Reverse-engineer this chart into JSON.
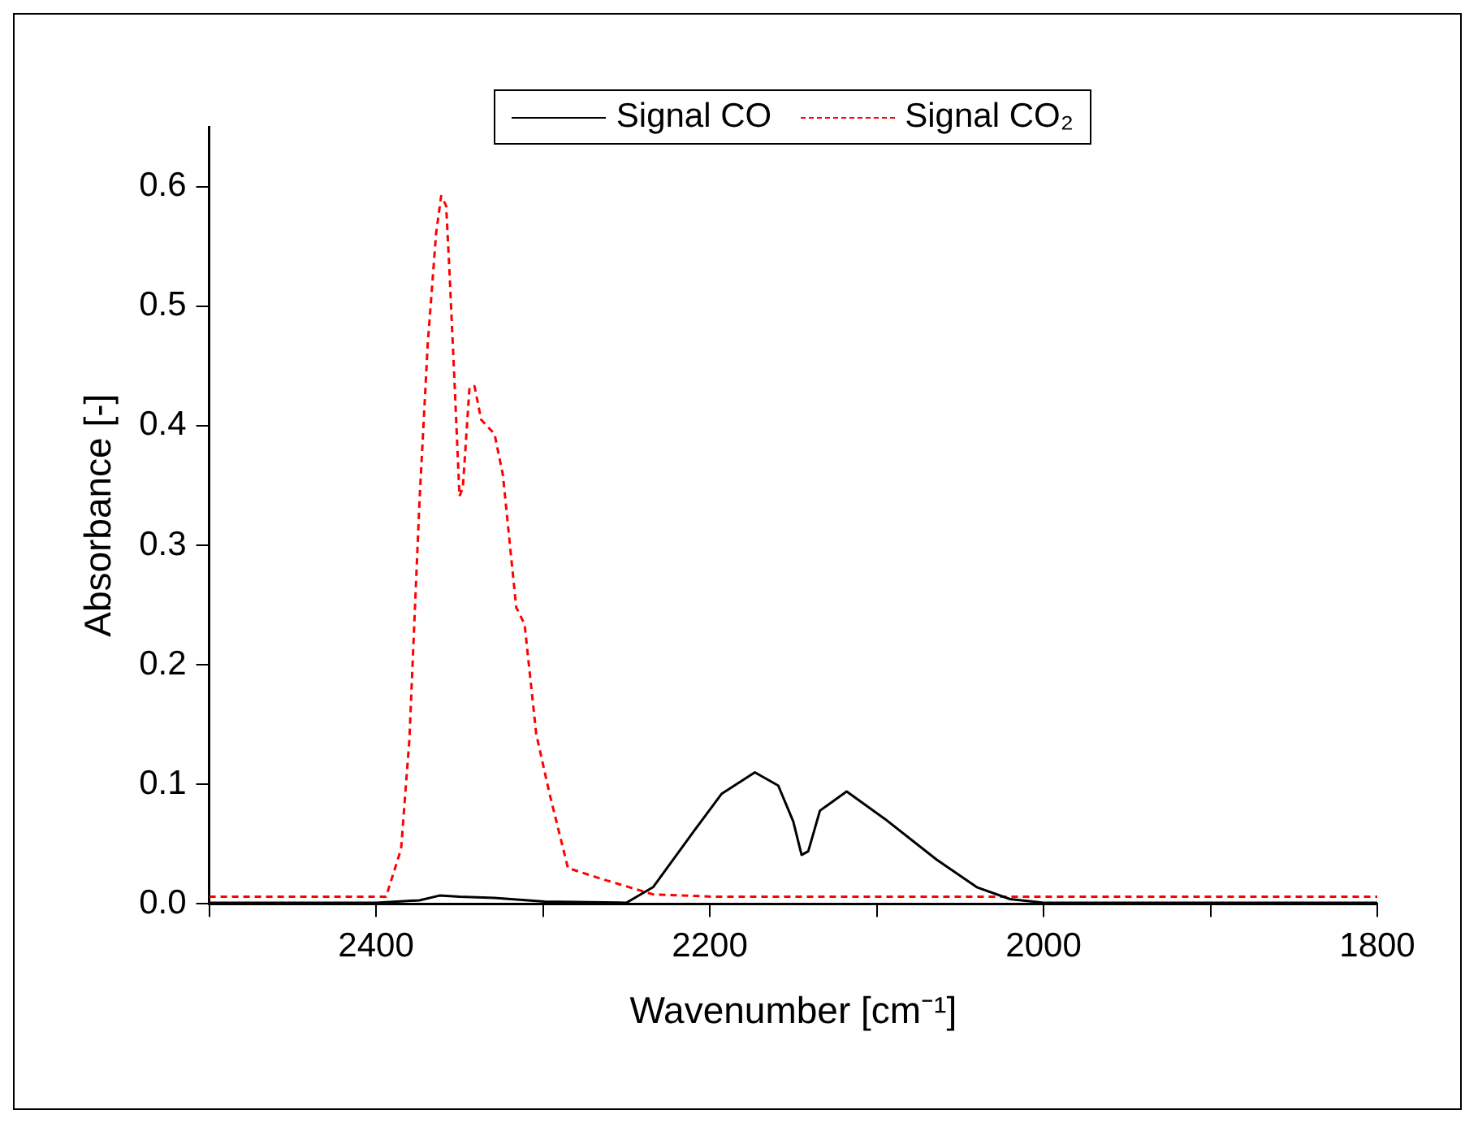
{
  "chart_data": {
    "type": "line",
    "xlabel": "Wavenumber [cm⁻¹]",
    "ylabel": "Absorbance [-]",
    "xlim": [
      2500,
      1800
    ],
    "xticks": [
      {
        "value": 2500,
        "label": null
      },
      2400,
      {
        "value": 2300,
        "label": null
      },
      2200,
      {
        "value": 2100,
        "label": null
      },
      2000,
      {
        "value": 1900,
        "label": null
      },
      1800
    ],
    "ylim": [
      0,
      0.65
    ],
    "yticks": [
      "0.0",
      0.1,
      0.2,
      0.3,
      0.4,
      0.5,
      0.6
    ],
    "grid": false,
    "legend": "top",
    "marker": "none",
    "series": [
      {
        "name": "Signal CO",
        "color": "#000000",
        "line_style": "solid",
        "x": [
          2500,
          2400,
          2374,
          2362,
          2350,
          2329,
          2299,
          2250,
          2234,
          2210,
          2193,
          2173,
          2159,
          2150,
          2145,
          2141,
          2134,
          2118,
          2095,
          2064,
          2040,
          2020,
          2000,
          1900,
          1800
        ],
        "values": [
          0.001,
          0.001,
          0.003,
          0.007,
          0.006,
          0.005,
          0.002,
          0.001,
          0.014,
          0.06,
          0.092,
          0.11,
          0.099,
          0.069,
          0.041,
          0.044,
          0.078,
          0.094,
          0.071,
          0.037,
          0.014,
          0.004,
          0.001,
          0.001,
          0.001
        ]
      },
      {
        "name": "Signal CO₂",
        "color": "#ff0000",
        "line_style": "dashed",
        "x": [
          2500,
          2394,
          2385,
          2380,
          2374,
          2369,
          2364,
          2361,
          2358,
          2356,
          2353,
          2350,
          2348,
          2344,
          2341,
          2337,
          2329,
          2324,
          2316,
          2311,
          2304,
          2296,
          2285,
          2265,
          2234,
          2197,
          2000,
          1800
        ],
        "values": [
          0.006,
          0.006,
          0.046,
          0.138,
          0.336,
          0.469,
          0.561,
          0.592,
          0.584,
          0.529,
          0.437,
          0.341,
          0.348,
          0.432,
          0.433,
          0.405,
          0.393,
          0.359,
          0.248,
          0.234,
          0.142,
          0.092,
          0.03,
          0.021,
          0.008,
          0.006,
          0.006,
          0.006
        ]
      }
    ]
  }
}
